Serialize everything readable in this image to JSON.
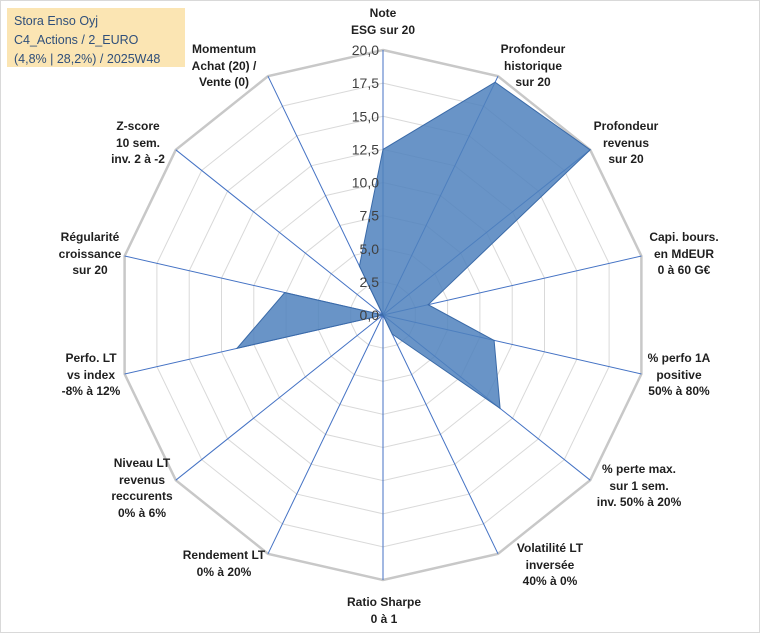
{
  "chart_data": {
    "type": "radar",
    "title_lines": [
      "Stora Enso Oyj",
      "C4_Actions / 2_EURO",
      "(4,8% | 28,2%) / 2025W48"
    ],
    "rlim": [
      0,
      20
    ],
    "ticks": [
      "0,0",
      "2,5",
      "5,0",
      "7,5",
      "10,0",
      "12,5",
      "15,0",
      "17,5",
      "20,0"
    ],
    "fill_color": "#4f81bd",
    "grid_color": "#d9d9d9",
    "axis_color": "#4472c4",
    "axes": [
      {
        "lines": [
          "Note",
          "ESG sur 20"
        ],
        "value": 12.5
      },
      {
        "lines": [
          "Profondeur",
          "historique",
          "sur 20"
        ],
        "value": 19.5
      },
      {
        "lines": [
          "Profondeur",
          "revenus",
          "sur 20"
        ],
        "value": 20.0
      },
      {
        "lines": [
          "Capi. bours.",
          "en MdEUR",
          "0 à 60 G€"
        ],
        "value": 3.5
      },
      {
        "lines": [
          "% perfo 1A",
          "positive",
          "50% à 80%"
        ],
        "value": 8.6
      },
      {
        "lines": [
          "% perte max.",
          "sur 1 sem.",
          "inv. 50% à 20%"
        ],
        "value": 11.3
      },
      {
        "lines": [
          "Volatilité LT",
          "inversée",
          "40% à 0%"
        ],
        "value": 1.6
      },
      {
        "lines": [
          "Ratio Sharpe",
          "0 à 1"
        ],
        "value": 0.0
      },
      {
        "lines": [
          "Rendement LT",
          "0% à 20%"
        ],
        "value": 0.0
      },
      {
        "lines": [
          "Niveau LT",
          "revenus",
          "reccurents",
          "0% à 6%"
        ],
        "value": 0.0
      },
      {
        "lines": [
          "Perfo. LT",
          "vs index",
          "-8% à 12%"
        ],
        "value": 11.3
      },
      {
        "lines": [
          "Régularité",
          "croissance",
          "sur 20"
        ],
        "value": 7.6
      },
      {
        "lines": [
          "Z-score",
          "10 sem.",
          "inv. 2 à -2"
        ],
        "value": 0.0
      },
      {
        "lines": [
          "Momentum",
          "Achat (20) /",
          "Vente (0)"
        ],
        "value": 4.1
      }
    ]
  }
}
